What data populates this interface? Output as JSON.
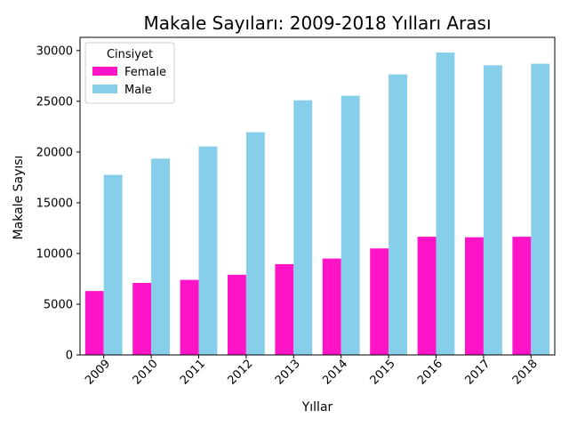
{
  "chart_data": {
    "type": "bar",
    "title": "Makale Sayıları: 2009-2018 Yılları Arası",
    "xlabel": "Yıllar",
    "ylabel": "Makale Sayısı",
    "categories": [
      "2009",
      "2010",
      "2011",
      "2012",
      "2013",
      "2014",
      "2015",
      "2016",
      "2017",
      "2018"
    ],
    "series": [
      {
        "name": "Female",
        "color": "#ff14c8",
        "values": [
          6300,
          7100,
          7400,
          7900,
          8950,
          9500,
          10500,
          11650,
          11600,
          11650
        ]
      },
      {
        "name": "Male",
        "color": "#87ceeb",
        "values": [
          17750,
          19350,
          20550,
          21950,
          25100,
          25550,
          27650,
          29800,
          28550,
          28700
        ]
      }
    ],
    "ylim": [
      0,
      31300
    ],
    "yticks": [
      0,
      5000,
      10000,
      15000,
      20000,
      25000,
      30000
    ],
    "legend": {
      "title": "Cinsiyet",
      "position": "top-left"
    },
    "grid": false
  }
}
